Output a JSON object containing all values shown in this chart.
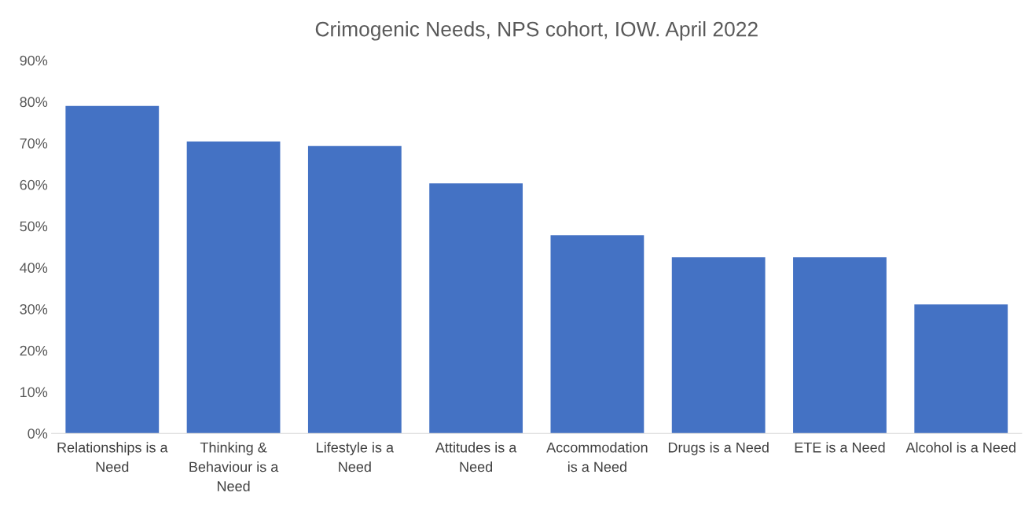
{
  "chart_data": {
    "type": "bar",
    "title": "Crimogenic Needs, NPS cohort, IOW. April 2022",
    "categories": [
      "Relationships is a Need",
      "Thinking & Behaviour is a Need",
      "Lifestyle is a Need",
      "Attitudes is a Need",
      "Accommodation is a Need",
      "Drugs is a Need",
      "ETE is a Need",
      "Alcohol is a Need"
    ],
    "values": [
      79,
      70.4,
      69.3,
      60.3,
      47.8,
      42.5,
      42.5,
      31.1
    ],
    "color": "#4472c4",
    "ylim": [
      0,
      90
    ],
    "yticks": [
      {
        "value": 0,
        "label": "0%"
      },
      {
        "value": 10,
        "label": "10%"
      },
      {
        "value": 20,
        "label": "20%"
      },
      {
        "value": 30,
        "label": "30%"
      },
      {
        "value": 40,
        "label": "40%"
      },
      {
        "value": 50,
        "label": "50%"
      },
      {
        "value": 60,
        "label": "60%"
      },
      {
        "value": 70,
        "label": "70%"
      },
      {
        "value": 80,
        "label": "80%"
      },
      {
        "value": 90,
        "label": "90%"
      }
    ],
    "grid": false,
    "legend": false
  }
}
